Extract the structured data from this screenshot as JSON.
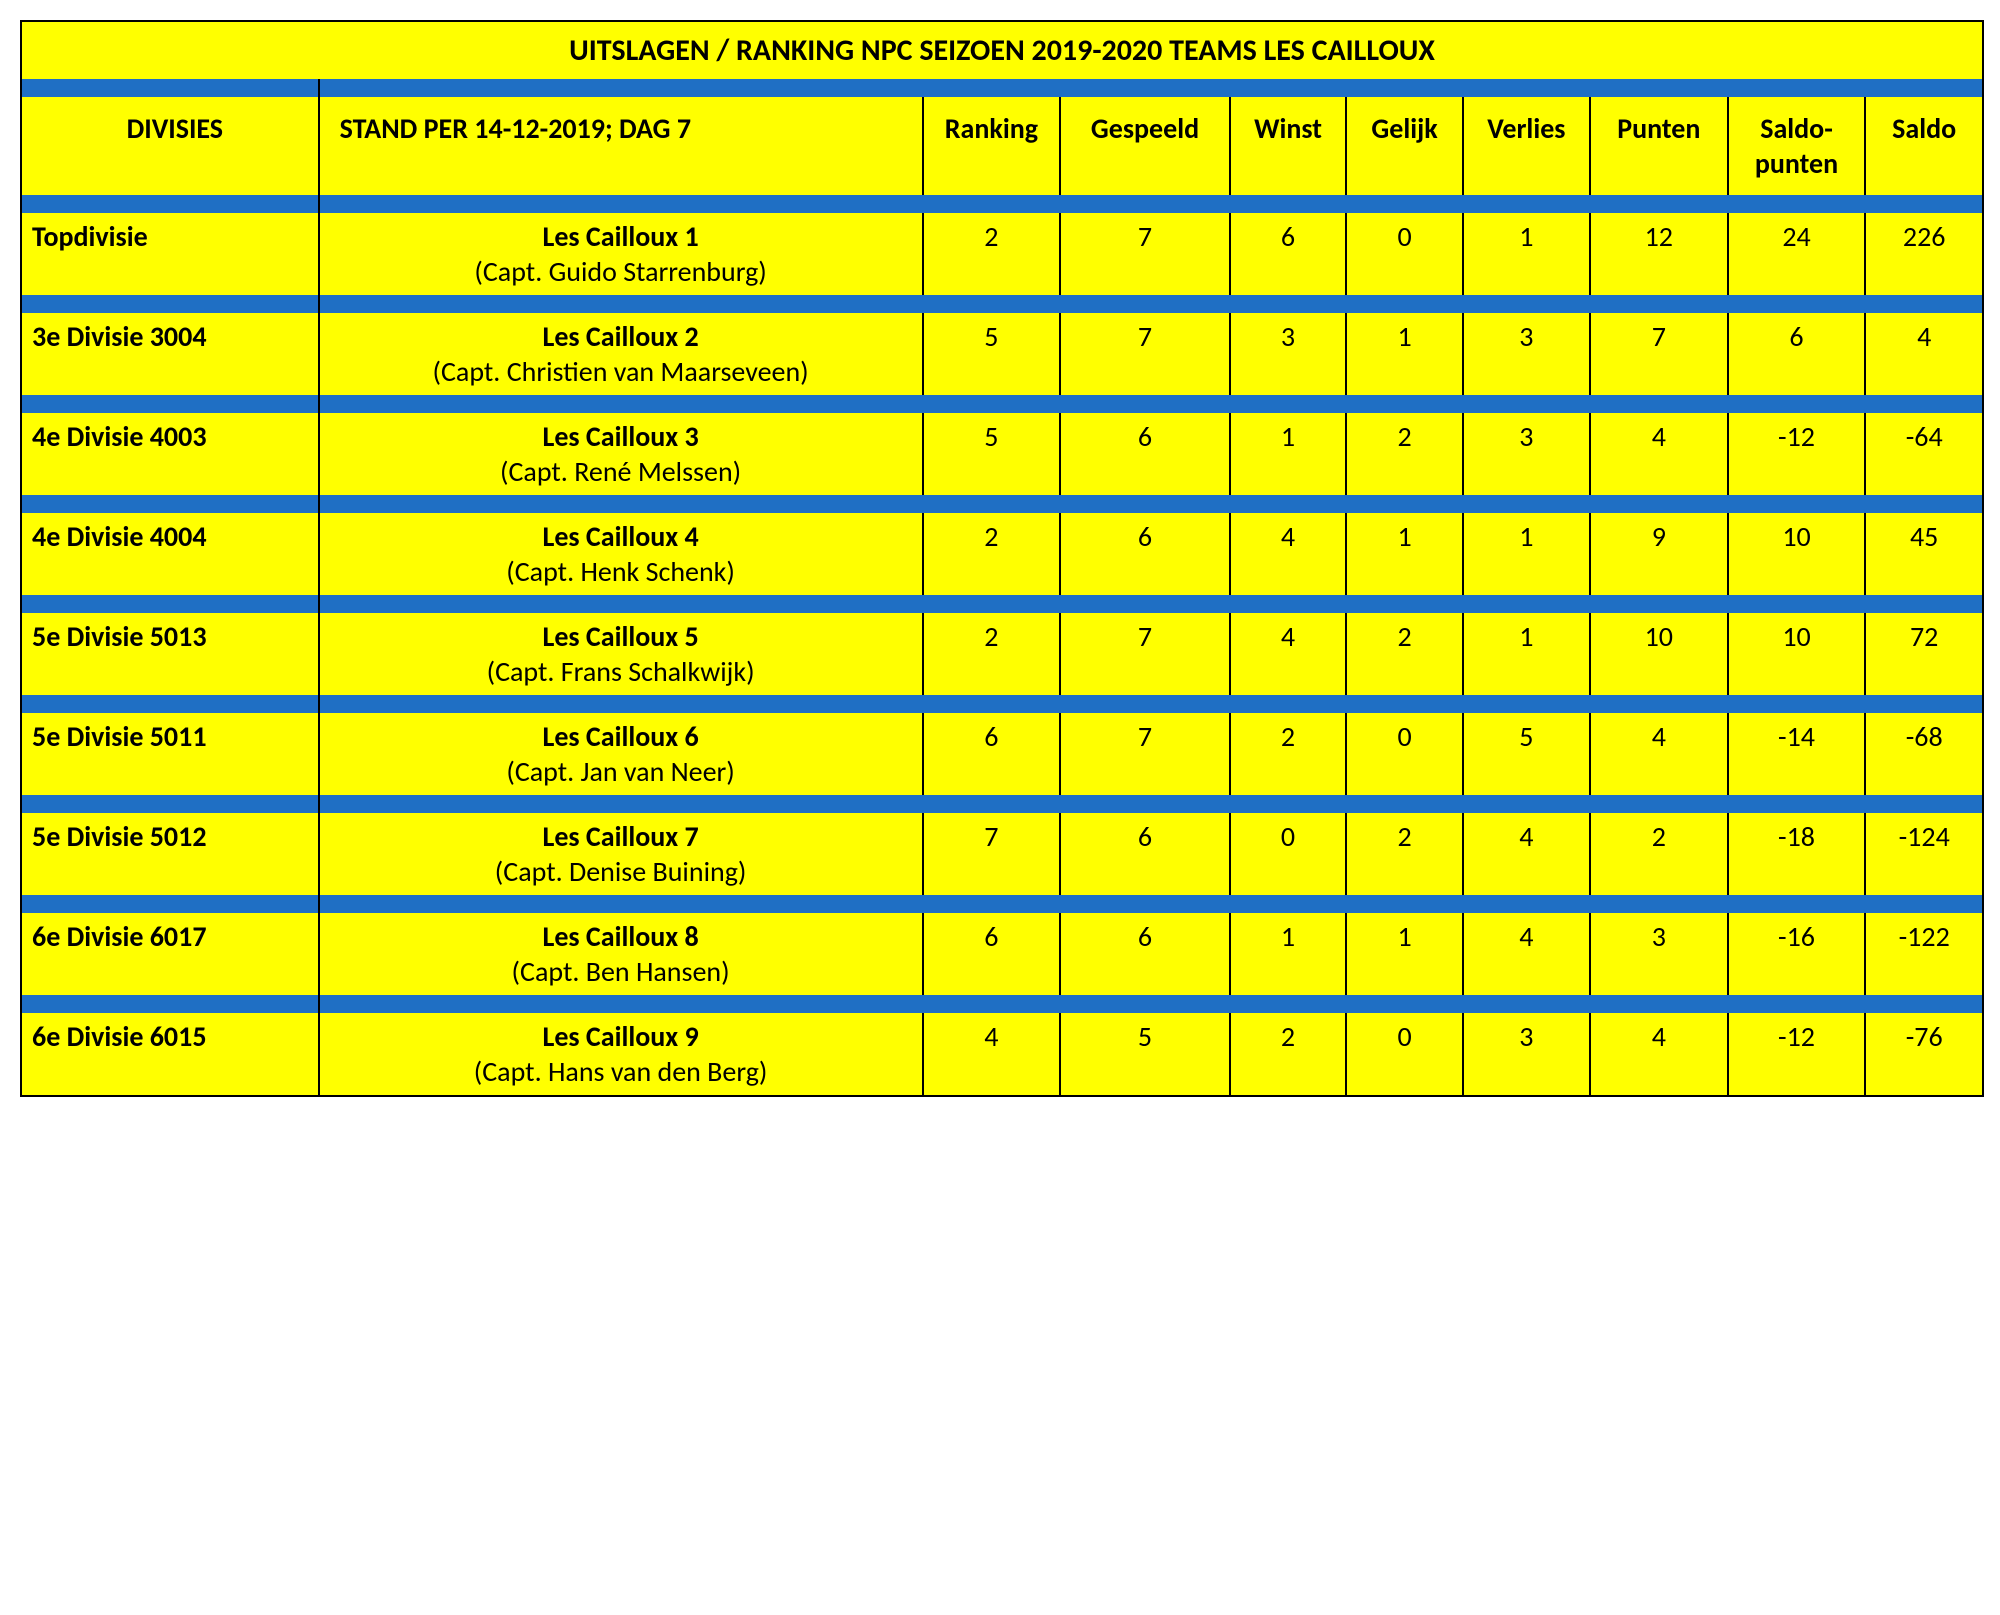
{
  "colors": {
    "yellow": "#ffff00",
    "blue": "#1f6fc4",
    "border": "#000000"
  },
  "title": "UITSLAGEN / RANKING NPC SEIZOEN 2019-2020 TEAMS LES CAILLOUX",
  "headers": {
    "divisies": "DIVISIES",
    "stand": "STAND PER 14-12-2019; DAG 7",
    "ranking": "Ranking",
    "gespeeld": "Gespeeld",
    "winst": "Winst",
    "gelijk": "Gelijk",
    "verlies": "Verlies",
    "punten": "Punten",
    "saldopunten1": "Saldo-",
    "saldopunten2": "punten",
    "saldo": "Saldo"
  },
  "rows": [
    {
      "division": "Topdivisie",
      "team": "Les Cailloux 1",
      "captain": "(Capt. Guido Starrenburg)",
      "ranking": "2",
      "gespeeld": "7",
      "winst": "6",
      "gelijk": "0",
      "verlies": "1",
      "punten": "12",
      "saldopunten": "24",
      "saldo": "226"
    },
    {
      "division": "3e Divisie 3004",
      "team": "Les Cailloux 2",
      "captain": "(Capt. Christien van Maarseveen)",
      "ranking": "5",
      "gespeeld": "7",
      "winst": "3",
      "gelijk": "1",
      "verlies": "3",
      "punten": "7",
      "saldopunten": "6",
      "saldo": "4"
    },
    {
      "division": "4e Divisie 4003",
      "team": "Les Cailloux 3",
      "captain": "(Capt. René Melssen)",
      "ranking": "5",
      "gespeeld": "6",
      "winst": "1",
      "gelijk": "2",
      "verlies": "3",
      "punten": "4",
      "saldopunten": "-12",
      "saldo": "-64"
    },
    {
      "division": "4e Divisie 4004",
      "team": "Les Cailloux 4",
      "captain": "(Capt. Henk Schenk)",
      "ranking": "2",
      "gespeeld": "6",
      "winst": "4",
      "gelijk": "1",
      "verlies": "1",
      "punten": "9",
      "saldopunten": "10",
      "saldo": "45"
    },
    {
      "division": "5e Divisie 5013",
      "team": "Les Cailloux 5",
      "captain": "(Capt. Frans Schalkwijk)",
      "ranking": "2",
      "gespeeld": "7",
      "winst": "4",
      "gelijk": "2",
      "verlies": "1",
      "punten": "10",
      "saldopunten": "10",
      "saldo": "72"
    },
    {
      "division": "5e Divisie 5011",
      "team": "Les Cailloux 6",
      "captain": "(Capt. Jan van Neer)",
      "ranking": "6",
      "gespeeld": "7",
      "winst": "2",
      "gelijk": "0",
      "verlies": "5",
      "punten": "4",
      "saldopunten": "-14",
      "saldo": "-68"
    },
    {
      "division": "5e Divisie 5012",
      "team": "Les Cailloux 7",
      "captain": "(Capt. Denise Buining)",
      "ranking": "7",
      "gespeeld": "6",
      "winst": "0",
      "gelijk": "2",
      "verlies": "4",
      "punten": "2",
      "saldopunten": "-18",
      "saldo": "-124"
    },
    {
      "division": "6e Divisie 6017",
      "team": "Les Cailloux 8",
      "captain": "(Capt. Ben Hansen)",
      "ranking": "6",
      "gespeeld": "6",
      "winst": "1",
      "gelijk": "1",
      "verlies": "4",
      "punten": "3",
      "saldopunten": "-16",
      "saldo": "-122"
    },
    {
      "division": "6e Divisie 6015",
      "team": "Les Cailloux 9",
      "captain": "(Capt. Hans van den Berg)",
      "ranking": "4",
      "gespeeld": "5",
      "winst": "2",
      "gelijk": "0",
      "verlies": "3",
      "punten": "4",
      "saldopunten": "-12",
      "saldo": "-76"
    }
  ]
}
